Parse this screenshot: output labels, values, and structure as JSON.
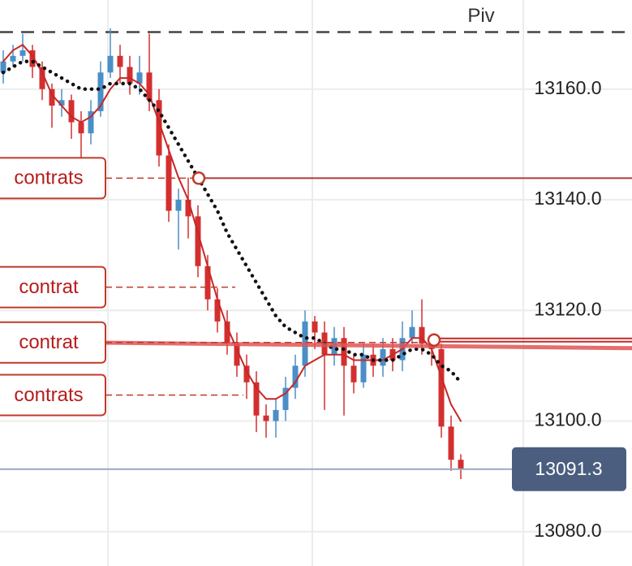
{
  "chart_data": {
    "type": "candlestick",
    "ylim": [
      13073.8,
      13176.1
    ],
    "yticks": [
      {
        "value": 13080,
        "label": "13080.0"
      },
      {
        "value": 13100,
        "label": "13100.0"
      },
      {
        "value": 13120,
        "label": "13120.0"
      },
      {
        "value": 13140,
        "label": "13140.0"
      },
      {
        "value": 13160,
        "label": "13160.0"
      }
    ],
    "grid": true,
    "up_color": "#4a8fc7",
    "down_color": "#d32f2f",
    "open": [
      13163,
      13165,
      13166,
      13167,
      13164,
      13160,
      13157,
      13158,
      13154,
      13152,
      13156,
      13163,
      13166,
      13164,
      13161,
      13163,
      13158,
      13148,
      13138,
      13140,
      13137,
      13128,
      13122,
      13118,
      13114,
      13110,
      13107,
      13101,
      13100,
      13102,
      13106,
      13110,
      13118,
      13116,
      13112,
      13115,
      13110,
      13107,
      13112,
      13110,
      13113,
      13111,
      13115,
      13117,
      13114,
      13113,
      13099,
      13093
    ],
    "high": [
      13167,
      13168,
      13170,
      13168,
      13165,
      13161,
      13160,
      13159,
      13156,
      13158,
      13165,
      13171,
      13168,
      13166,
      13166,
      13170,
      13160,
      13150,
      13142,
      13144,
      13139,
      13130,
      13124,
      13120,
      13116,
      13112,
      13109,
      13103,
      13104,
      13108,
      13112,
      13120,
      13119,
      13118,
      13117,
      13117,
      13112,
      13114,
      13114,
      13115,
      13115,
      13118,
      13120,
      13122,
      13115,
      13114,
      13101,
      13094
    ],
    "low": [
      13161,
      13164,
      13165,
      13162,
      13158,
      13153,
      13155,
      13151,
      13147,
      13150,
      13155,
      13162,
      13161,
      13159,
      13159,
      13156,
      13146,
      13136,
      13131,
      13133,
      13126,
      13120,
      13116,
      13112,
      13108,
      13104,
      13098,
      13097,
      13097,
      13100,
      13104,
      13108,
      13113,
      13102,
      13110,
      13101,
      13105,
      13106,
      13108,
      13108,
      13109,
      13109,
      13114,
      13112,
      13110,
      13097,
      13091,
      13089.5
    ],
    "close": [
      13165,
      13166,
      13167,
      13164,
      13160,
      13157,
      13158,
      13154,
      13152,
      13156,
      13163,
      13166,
      13164,
      13161,
      13163,
      13158,
      13148,
      13138,
      13140,
      13137,
      13128,
      13122,
      13118,
      13114,
      13110,
      13107,
      13101,
      13100,
      13102,
      13106,
      13110,
      13118,
      13116,
      13112,
      13115,
      13110,
      13107,
      13112,
      13110,
      13113,
      13111,
      13115,
      13117,
      13114,
      13113,
      13099,
      13093,
      13091.3
    ],
    "lines": [
      {
        "color": "#c62828",
        "style": "solid",
        "values": [
          13165,
          13167,
          13168,
          13166,
          13163,
          13159,
          13157,
          13155,
          13154,
          13155,
          13157,
          13160,
          13162,
          13162,
          13161,
          13159,
          13154,
          13149,
          13144,
          13140,
          13134,
          13128,
          13122,
          13117,
          13113,
          13109,
          13106,
          13104,
          13104,
          13105,
          13107,
          13110,
          13111,
          13112,
          13112,
          13112,
          13111,
          13111,
          13111,
          13111,
          13112,
          13113,
          13115,
          13115,
          13113,
          13108,
          13103,
          13100
        ]
      },
      {
        "color": "#111111",
        "style": "dotted",
        "values": [
          13163,
          13164,
          13165,
          13165,
          13164,
          13163,
          13162,
          13161,
          13160,
          13160,
          13160,
          13161,
          13161,
          13161,
          13160,
          13158,
          13156,
          13153,
          13150,
          13147,
          13144,
          13141,
          13138,
          13134,
          13131,
          13128,
          13125,
          13122,
          13119,
          13117,
          13116,
          13115,
          13115,
          13114,
          13113,
          13113,
          13112,
          13112,
          13111,
          13111,
          13111,
          13112,
          13113,
          13113,
          13112,
          13110,
          13109,
          13107
        ]
      }
    ],
    "pivot": {
      "label": "Piv",
      "value": 13170.3
    },
    "orders": [
      {
        "label": "contrats",
        "value": 13143.9
      },
      {
        "label": "contrat",
        "value": 13124.2
      },
      {
        "label": "contrat",
        "value": 13114.2
      },
      {
        "label": "contrats",
        "value": 13104.7
      }
    ],
    "last_price": 13091.3
  }
}
